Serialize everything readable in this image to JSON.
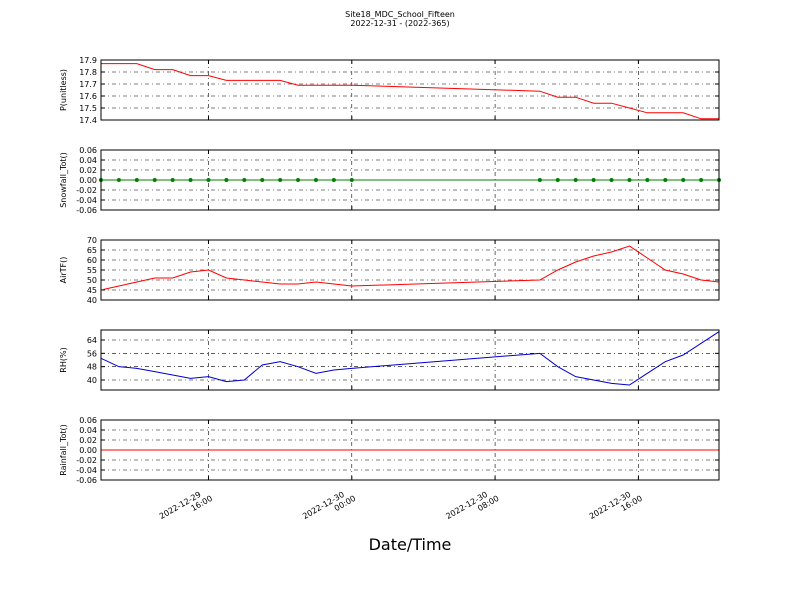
{
  "title": "Site18_MDC_School_Fifteen",
  "subtitle": "2022-12-31 - (2022-365)",
  "xlabel": "Date/Time",
  "chart_data": [
    {
      "type": "line",
      "ylabel": "P(unitless)",
      "x": [
        "2022-12-29 10:00",
        "2022-12-29 11:00",
        "2022-12-29 12:00",
        "2022-12-29 13:00",
        "2022-12-29 14:00",
        "2022-12-29 15:00",
        "2022-12-29 16:00",
        "2022-12-29 17:00",
        "2022-12-29 18:00",
        "2022-12-29 19:00",
        "2022-12-29 20:00",
        "2022-12-29 21:00",
        "2022-12-29 22:00",
        "2022-12-29 23:00",
        "2022-12-30 00:00",
        "2022-12-30 10:30",
        "2022-12-30 11:30",
        "2022-12-30 12:30",
        "2022-12-30 13:30",
        "2022-12-30 14:30",
        "2022-12-30 15:30",
        "2022-12-30 16:30",
        "2022-12-30 17:30",
        "2022-12-30 18:30",
        "2022-12-30 19:30",
        "2022-12-30 20:30"
      ],
      "series": [
        {
          "name": "P",
          "color": "#ff0000",
          "values": [
            17.87,
            17.87,
            17.87,
            17.82,
            17.82,
            17.77,
            17.77,
            17.73,
            17.73,
            17.73,
            17.73,
            17.69,
            17.69,
            17.69,
            17.69,
            17.64,
            17.59,
            17.59,
            17.54,
            17.54,
            17.5,
            17.46,
            17.46,
            17.46,
            17.41,
            17.41
          ]
        }
      ],
      "xlim": [
        "2022-12-29 10:00",
        "2022-12-30 20:30"
      ],
      "xticks": [
        "2022-12-29 16:00",
        "2022-12-30 00:00",
        "2022-12-30 08:00",
        "2022-12-30 16:00"
      ],
      "ylim": [
        17.4,
        17.9
      ],
      "yticks": [
        17.4,
        17.5,
        17.6,
        17.7,
        17.8,
        17.9
      ],
      "grid": true
    },
    {
      "type": "line",
      "ylabel": "Snowfall_Tot()",
      "markers": true,
      "x": [
        "2022-12-29 10:00",
        "2022-12-29 11:00",
        "2022-12-29 12:00",
        "2022-12-29 13:00",
        "2022-12-29 14:00",
        "2022-12-29 15:00",
        "2022-12-29 16:00",
        "2022-12-29 17:00",
        "2022-12-29 18:00",
        "2022-12-29 19:00",
        "2022-12-29 20:00",
        "2022-12-29 21:00",
        "2022-12-29 22:00",
        "2022-12-29 23:00",
        "2022-12-30 00:00",
        "2022-12-30 10:30",
        "2022-12-30 11:30",
        "2022-12-30 12:30",
        "2022-12-30 13:30",
        "2022-12-30 14:30",
        "2022-12-30 15:30",
        "2022-12-30 16:30",
        "2022-12-30 17:30",
        "2022-12-30 18:30",
        "2022-12-30 19:30",
        "2022-12-30 20:30"
      ],
      "series": [
        {
          "name": "Snowfall_Tot",
          "color": "#008000",
          "values": [
            0,
            0,
            0,
            0,
            0,
            0,
            0,
            0,
            0,
            0,
            0,
            0,
            0,
            0,
            0,
            0,
            0,
            0,
            0,
            0,
            0,
            0,
            0,
            0,
            0,
            0
          ]
        }
      ],
      "xlim": [
        "2022-12-29 10:00",
        "2022-12-30 20:30"
      ],
      "xticks": [
        "2022-12-29 16:00",
        "2022-12-30 00:00",
        "2022-12-30 08:00",
        "2022-12-30 16:00"
      ],
      "ylim": [
        -0.06,
        0.06
      ],
      "yticks": [
        -0.06,
        -0.04,
        -0.02,
        {
          "value": 0,
          "label": "0.00"
        },
        0.02,
        0.04,
        0.06
      ],
      "grid": true
    },
    {
      "type": "line",
      "ylabel": "AirTF()",
      "x": [
        "2022-12-29 10:00",
        "2022-12-29 11:00",
        "2022-12-29 12:00",
        "2022-12-29 13:00",
        "2022-12-29 14:00",
        "2022-12-29 15:00",
        "2022-12-29 16:00",
        "2022-12-29 17:00",
        "2022-12-29 18:00",
        "2022-12-29 19:00",
        "2022-12-29 20:00",
        "2022-12-29 21:00",
        "2022-12-29 22:00",
        "2022-12-29 23:00",
        "2022-12-30 00:00",
        "2022-12-30 10:30",
        "2022-12-30 11:30",
        "2022-12-30 12:30",
        "2022-12-30 13:30",
        "2022-12-30 14:30",
        "2022-12-30 15:30",
        "2022-12-30 16:30",
        "2022-12-30 17:30",
        "2022-12-30 18:30",
        "2022-12-30 19:30",
        "2022-12-30 20:30"
      ],
      "series": [
        {
          "name": "AirTF",
          "color": "#ff0000",
          "values": [
            45,
            47,
            49,
            51,
            51,
            54,
            55,
            51,
            50,
            49,
            48,
            48,
            49,
            48,
            47,
            50,
            55,
            59,
            62,
            64,
            67,
            61,
            55,
            53,
            50,
            49
          ]
        }
      ],
      "xlim": [
        "2022-12-29 10:00",
        "2022-12-30 20:30"
      ],
      "xticks": [
        "2022-12-29 16:00",
        "2022-12-30 00:00",
        "2022-12-30 08:00",
        "2022-12-30 16:00"
      ],
      "ylim": [
        40,
        70
      ],
      "yticks": [
        40,
        45,
        50,
        55,
        60,
        65,
        70
      ],
      "grid": true
    },
    {
      "type": "line",
      "ylabel": "RH(%)",
      "x": [
        "2022-12-29 10:00",
        "2022-12-29 11:00",
        "2022-12-29 12:00",
        "2022-12-29 13:00",
        "2022-12-29 14:00",
        "2022-12-29 15:00",
        "2022-12-29 16:00",
        "2022-12-29 17:00",
        "2022-12-29 18:00",
        "2022-12-29 19:00",
        "2022-12-29 20:00",
        "2022-12-29 21:00",
        "2022-12-29 22:00",
        "2022-12-29 23:00",
        "2022-12-30 00:00",
        "2022-12-30 10:30",
        "2022-12-30 11:30",
        "2022-12-30 12:30",
        "2022-12-30 13:30",
        "2022-12-30 14:30",
        "2022-12-30 15:30",
        "2022-12-30 16:30",
        "2022-12-30 17:30",
        "2022-12-30 18:30",
        "2022-12-30 19:30",
        "2022-12-30 20:30"
      ],
      "series": [
        {
          "name": "RH",
          "color": "#0000cc",
          "values": [
            53,
            48,
            47,
            45,
            43,
            41,
            42,
            39,
            40,
            49,
            51,
            48,
            44,
            46,
            47,
            56,
            48,
            42,
            40,
            38,
            37,
            44,
            51,
            55,
            62,
            69
          ]
        }
      ],
      "xlim": [
        "2022-12-29 10:00",
        "2022-12-30 20:30"
      ],
      "xticks": [
        "2022-12-29 16:00",
        "2022-12-30 00:00",
        "2022-12-30 08:00",
        "2022-12-30 16:00"
      ],
      "ylim": [
        34,
        70
      ],
      "yticks": [
        40,
        48,
        56,
        64
      ],
      "grid": true
    },
    {
      "type": "line",
      "ylabel": "Rainfall_Tot()",
      "x": [
        "2022-12-29 10:00",
        "2022-12-29 11:00",
        "2022-12-29 12:00",
        "2022-12-29 13:00",
        "2022-12-29 14:00",
        "2022-12-29 15:00",
        "2022-12-29 16:00",
        "2022-12-29 17:00",
        "2022-12-29 18:00",
        "2022-12-29 19:00",
        "2022-12-29 20:00",
        "2022-12-29 21:00",
        "2022-12-29 22:00",
        "2022-12-29 23:00",
        "2022-12-30 00:00",
        "2022-12-30 10:30",
        "2022-12-30 11:30",
        "2022-12-30 12:30",
        "2022-12-30 13:30",
        "2022-12-30 14:30",
        "2022-12-30 15:30",
        "2022-12-30 16:30",
        "2022-12-30 17:30",
        "2022-12-30 18:30",
        "2022-12-30 19:30",
        "2022-12-30 20:30"
      ],
      "series": [
        {
          "name": "Rainfall_Tot",
          "color": "#ff0000",
          "values": [
            0,
            0,
            0,
            0,
            0,
            0,
            0,
            0,
            0,
            0,
            0,
            0,
            0,
            0,
            0,
            0,
            0,
            0,
            0,
            0,
            0,
            0,
            0,
            0,
            0,
            0
          ]
        }
      ],
      "xlim": [
        "2022-12-29 10:00",
        "2022-12-30 20:30"
      ],
      "xticks": [
        "2022-12-29 16:00",
        "2022-12-30 00:00",
        "2022-12-30 08:00",
        "2022-12-30 16:00"
      ],
      "ylim": [
        -0.06,
        0.06
      ],
      "yticks": [
        -0.06,
        -0.04,
        -0.02,
        {
          "value": 0,
          "label": "0.00"
        },
        0.02,
        0.04,
        0.06
      ],
      "grid": true,
      "show_xtick_labels": true
    }
  ]
}
